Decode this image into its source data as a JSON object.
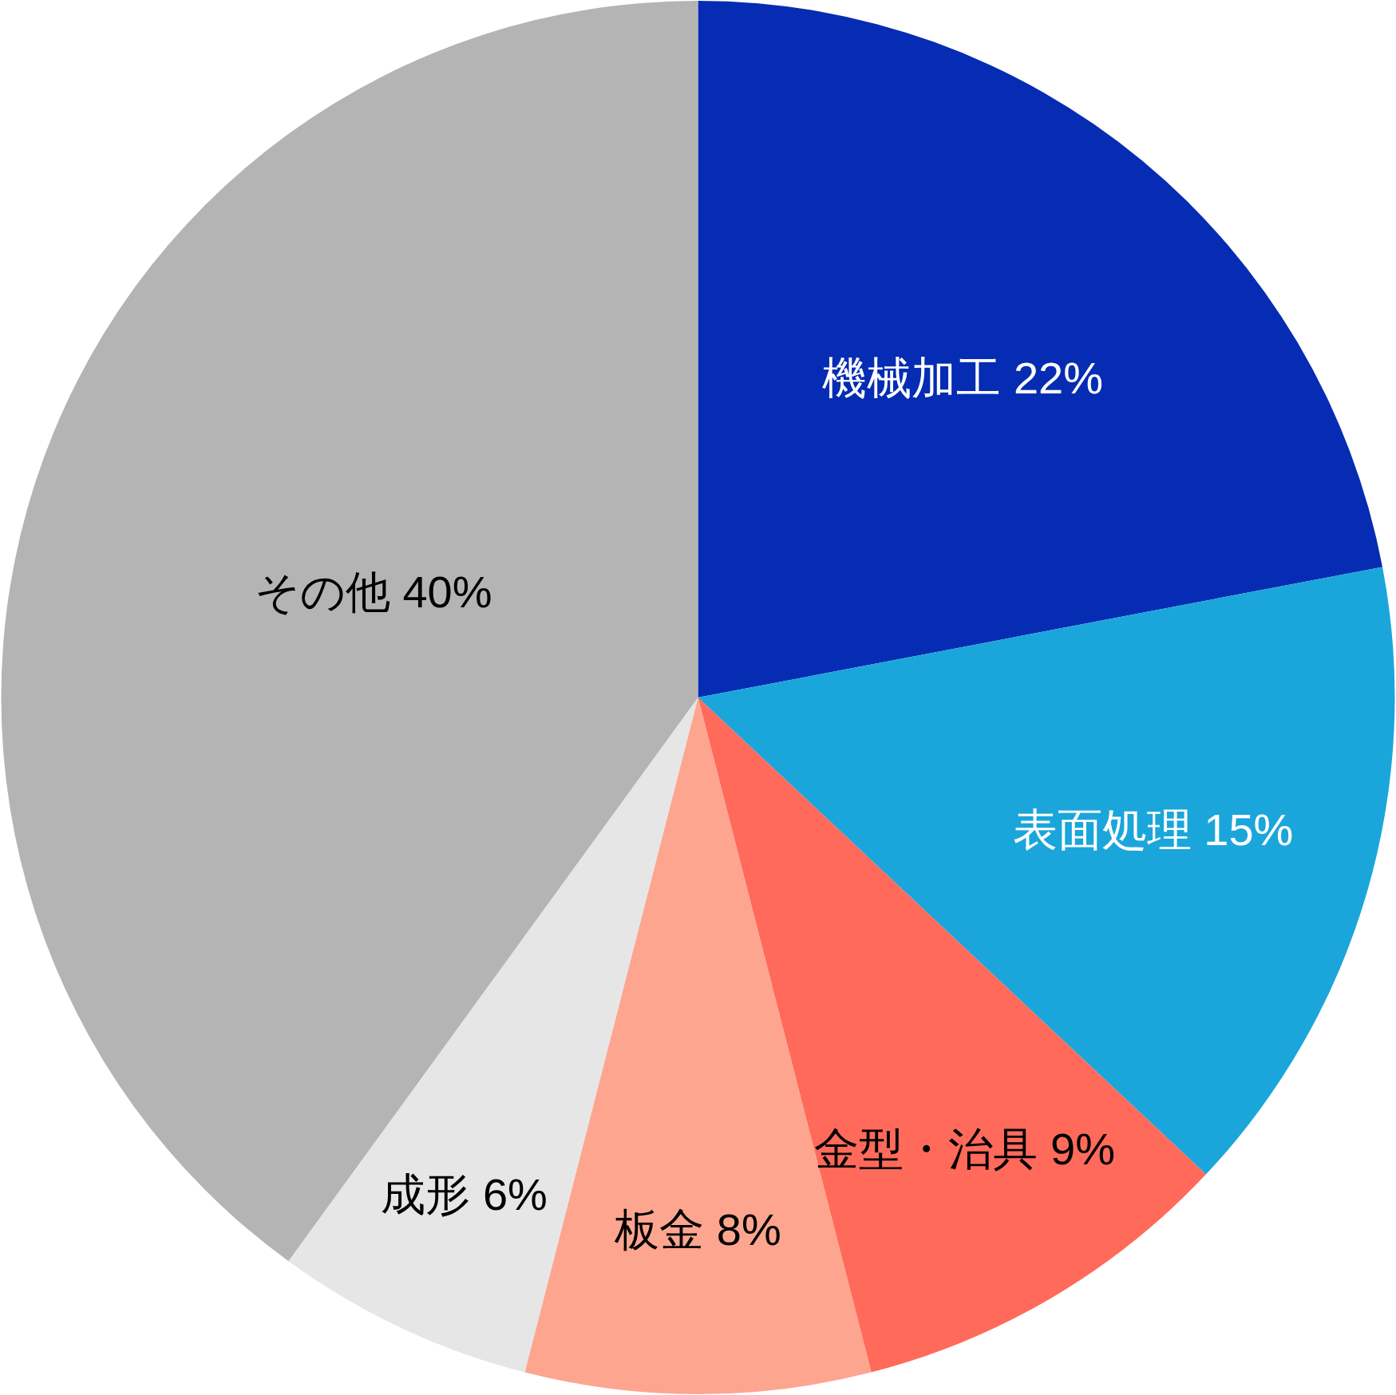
{
  "chart_data": {
    "type": "pie",
    "categories": [
      "機械加工",
      "表面処理",
      "金型・治具",
      "板金",
      "成形",
      "その他"
    ],
    "values": [
      22,
      15,
      9,
      8,
      6,
      40
    ],
    "value_labels": [
      "22%",
      "15%",
      "9%",
      "8%",
      "6%",
      "40%"
    ],
    "colors": [
      "#052cb3",
      "#1aa6db",
      "#ff6a5a",
      "#fda58f",
      "#e6e6e6",
      "#b4b4b4"
    ]
  }
}
